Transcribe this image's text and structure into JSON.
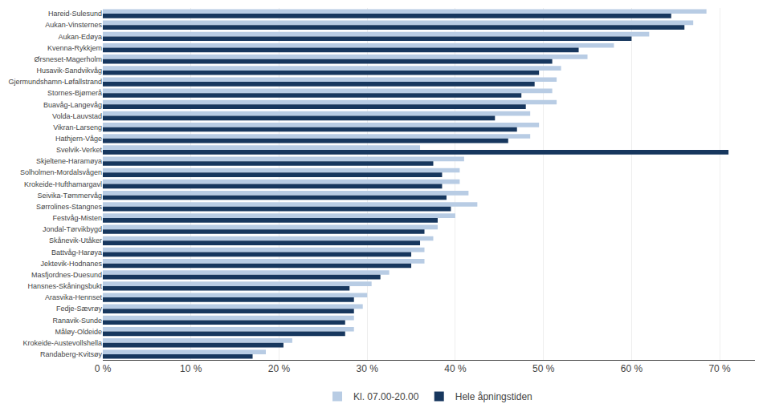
{
  "chart_data": {
    "type": "bar",
    "orientation": "horizontal",
    "categories": [
      "Hareid-Sulesund",
      "Aukan-Vinsternes",
      "Aukan-Edøya",
      "Kvenna-Rykkjem",
      "Ørsneset-Magerholm",
      "Husavik-Sandvikvåg",
      "Gjermundshamn-Løfallstrand",
      "Stornes-Bjømerå",
      "Buavåg-Langevåg",
      "Volda-Lauvstad",
      "Vikran-Larseng",
      "Hathjern-Våge",
      "Svelvik-Verket",
      "Skjeltene-Haramøya",
      "Solholmen-Mordalsvågen",
      "Krokeide-Hufthamargavl",
      "Seivika-Tømmervåg",
      "Sørrolines-Stangnes",
      "Festvåg-Misten",
      "Jondal-Tørvikbygd",
      "Skånevik-Utåker",
      "Battvåg-Harøya",
      "Jektevik-Hodnanes",
      "Masfjordnes-Duesund",
      "Hansnes-Skåningsbukt",
      "Arasvika-Hennset",
      "Fedje-Sævrøy",
      "Ranavik-Sunde",
      "Måløy-Oldeide",
      "Krokeide-Austevollshella",
      "Randaberg-Kvitsøy"
    ],
    "series": [
      {
        "name": "Kl. 07.00-20.00",
        "color": "#b8cce4",
        "values": [
          68.5,
          67.0,
          62.0,
          58.0,
          55.0,
          52.0,
          51.5,
          51.0,
          51.5,
          48.5,
          49.5,
          48.5,
          36.0,
          41.0,
          40.5,
          40.5,
          41.5,
          42.5,
          40.0,
          38.0,
          37.5,
          36.5,
          36.5,
          32.5,
          30.5,
          30.0,
          29.5,
          28.5,
          28.5,
          21.5,
          18.5
        ]
      },
      {
        "name": "Hele åpningstiden",
        "color": "#17375e",
        "values": [
          64.5,
          66.0,
          60.0,
          54.0,
          51.0,
          49.5,
          49.0,
          47.5,
          48.0,
          44.5,
          47.0,
          46.0,
          71.0,
          37.5,
          38.5,
          38.5,
          39.0,
          39.5,
          38.0,
          36.5,
          36.0,
          35.0,
          35.0,
          31.5,
          28.0,
          28.5,
          28.5,
          27.5,
          27.5,
          20.5,
          17.0
        ]
      }
    ],
    "xlim": [
      0,
      74
    ],
    "xticks": [
      {
        "value": 0,
        "label": "0 %"
      },
      {
        "value": 10,
        "label": "10 %"
      },
      {
        "value": 20,
        "label": "20 %"
      },
      {
        "value": 30,
        "label": "30 %"
      },
      {
        "value": 40,
        "label": "40 %"
      },
      {
        "value": 50,
        "label": "50 %"
      },
      {
        "value": 60,
        "label": "60 %"
      },
      {
        "value": 70,
        "label": "70 %"
      }
    ],
    "grid": true,
    "legend": "bottom"
  }
}
